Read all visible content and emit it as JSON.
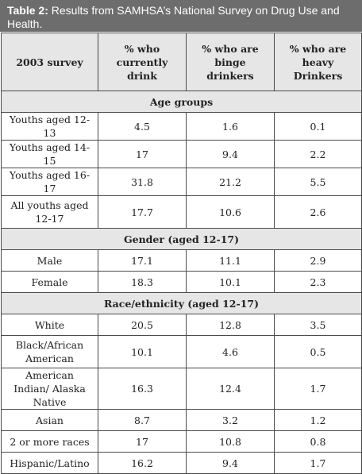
{
  "caption": {
    "label": "Table 2:",
    "text": "Results from SAMHSA’s National Survey on Drug Use and Health."
  },
  "columns": [
    "2003 survey",
    "% who currently drink",
    "% who are binge drinkers",
    "% who are heavy Drinkers"
  ],
  "sections": [
    {
      "title": "Age groups",
      "rows": [
        {
          "label": "Youths aged 12-13",
          "drink": "4.5",
          "binge": "1.6",
          "heavy": "0.1"
        },
        {
          "label": "Youths aged 14-15",
          "drink": "17",
          "binge": "9.4",
          "heavy": "2.2"
        },
        {
          "label": "Youths aged 16-17",
          "drink": "31.8",
          "binge": "21.2",
          "heavy": "5.5"
        },
        {
          "label": "All youths aged 12-17",
          "drink": "17.7",
          "binge": "10.6",
          "heavy": "2.6"
        }
      ]
    },
    {
      "title": "Gender (aged 12-17)",
      "rows": [
        {
          "label": "Male",
          "drink": "17.1",
          "binge": "11.1",
          "heavy": "2.9"
        },
        {
          "label": "Female",
          "drink": "18.3",
          "binge": "10.1",
          "heavy": "2.3"
        }
      ]
    },
    {
      "title": "Race/ethnicity (aged 12-17)",
      "rows": [
        {
          "label": "White",
          "drink": "20.5",
          "binge": "12.8",
          "heavy": "3.5"
        },
        {
          "label": "Black/African American",
          "drink": "10.1",
          "binge": "4.6",
          "heavy": "0.5"
        },
        {
          "label": "American Indian/ Alaska Native",
          "drink": "16.3",
          "binge": "12.4",
          "heavy": "1.7"
        },
        {
          "label": "Asian",
          "drink": "8.7",
          "binge": "3.2",
          "heavy": "1.2"
        },
        {
          "label": "2 or more races",
          "drink": "17",
          "binge": "10.8",
          "heavy": "0.8"
        },
        {
          "label": "Hispanic/Latino",
          "drink": "16.2",
          "binge": "9.4",
          "heavy": "1.7"
        }
      ]
    }
  ]
}
